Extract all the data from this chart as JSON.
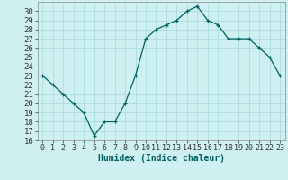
{
  "x": [
    0,
    1,
    2,
    3,
    4,
    5,
    6,
    7,
    8,
    9,
    10,
    11,
    12,
    13,
    14,
    15,
    16,
    17,
    18,
    19,
    20,
    21,
    22,
    23
  ],
  "y": [
    23,
    22,
    21,
    20,
    19,
    16.5,
    18,
    18,
    20,
    23,
    27,
    28,
    28.5,
    29,
    30,
    30.5,
    29,
    28.5,
    27,
    27,
    27,
    26,
    25,
    23
  ],
  "xlabel": "Humidex (Indice chaleur)",
  "ylim": [
    16,
    31
  ],
  "xlim": [
    -0.5,
    23.5
  ],
  "yticks": [
    16,
    17,
    18,
    19,
    20,
    21,
    22,
    23,
    24,
    25,
    26,
    27,
    28,
    29,
    30
  ],
  "xticks": [
    0,
    1,
    2,
    3,
    4,
    5,
    6,
    7,
    8,
    9,
    10,
    11,
    12,
    13,
    14,
    15,
    16,
    17,
    18,
    19,
    20,
    21,
    22,
    23
  ],
  "line_color": "#006060",
  "marker": "+",
  "bg_color": "#cff0f0",
  "grid_color": "#aadddd",
  "label_fontsize": 7,
  "tick_fontsize": 6.5
}
